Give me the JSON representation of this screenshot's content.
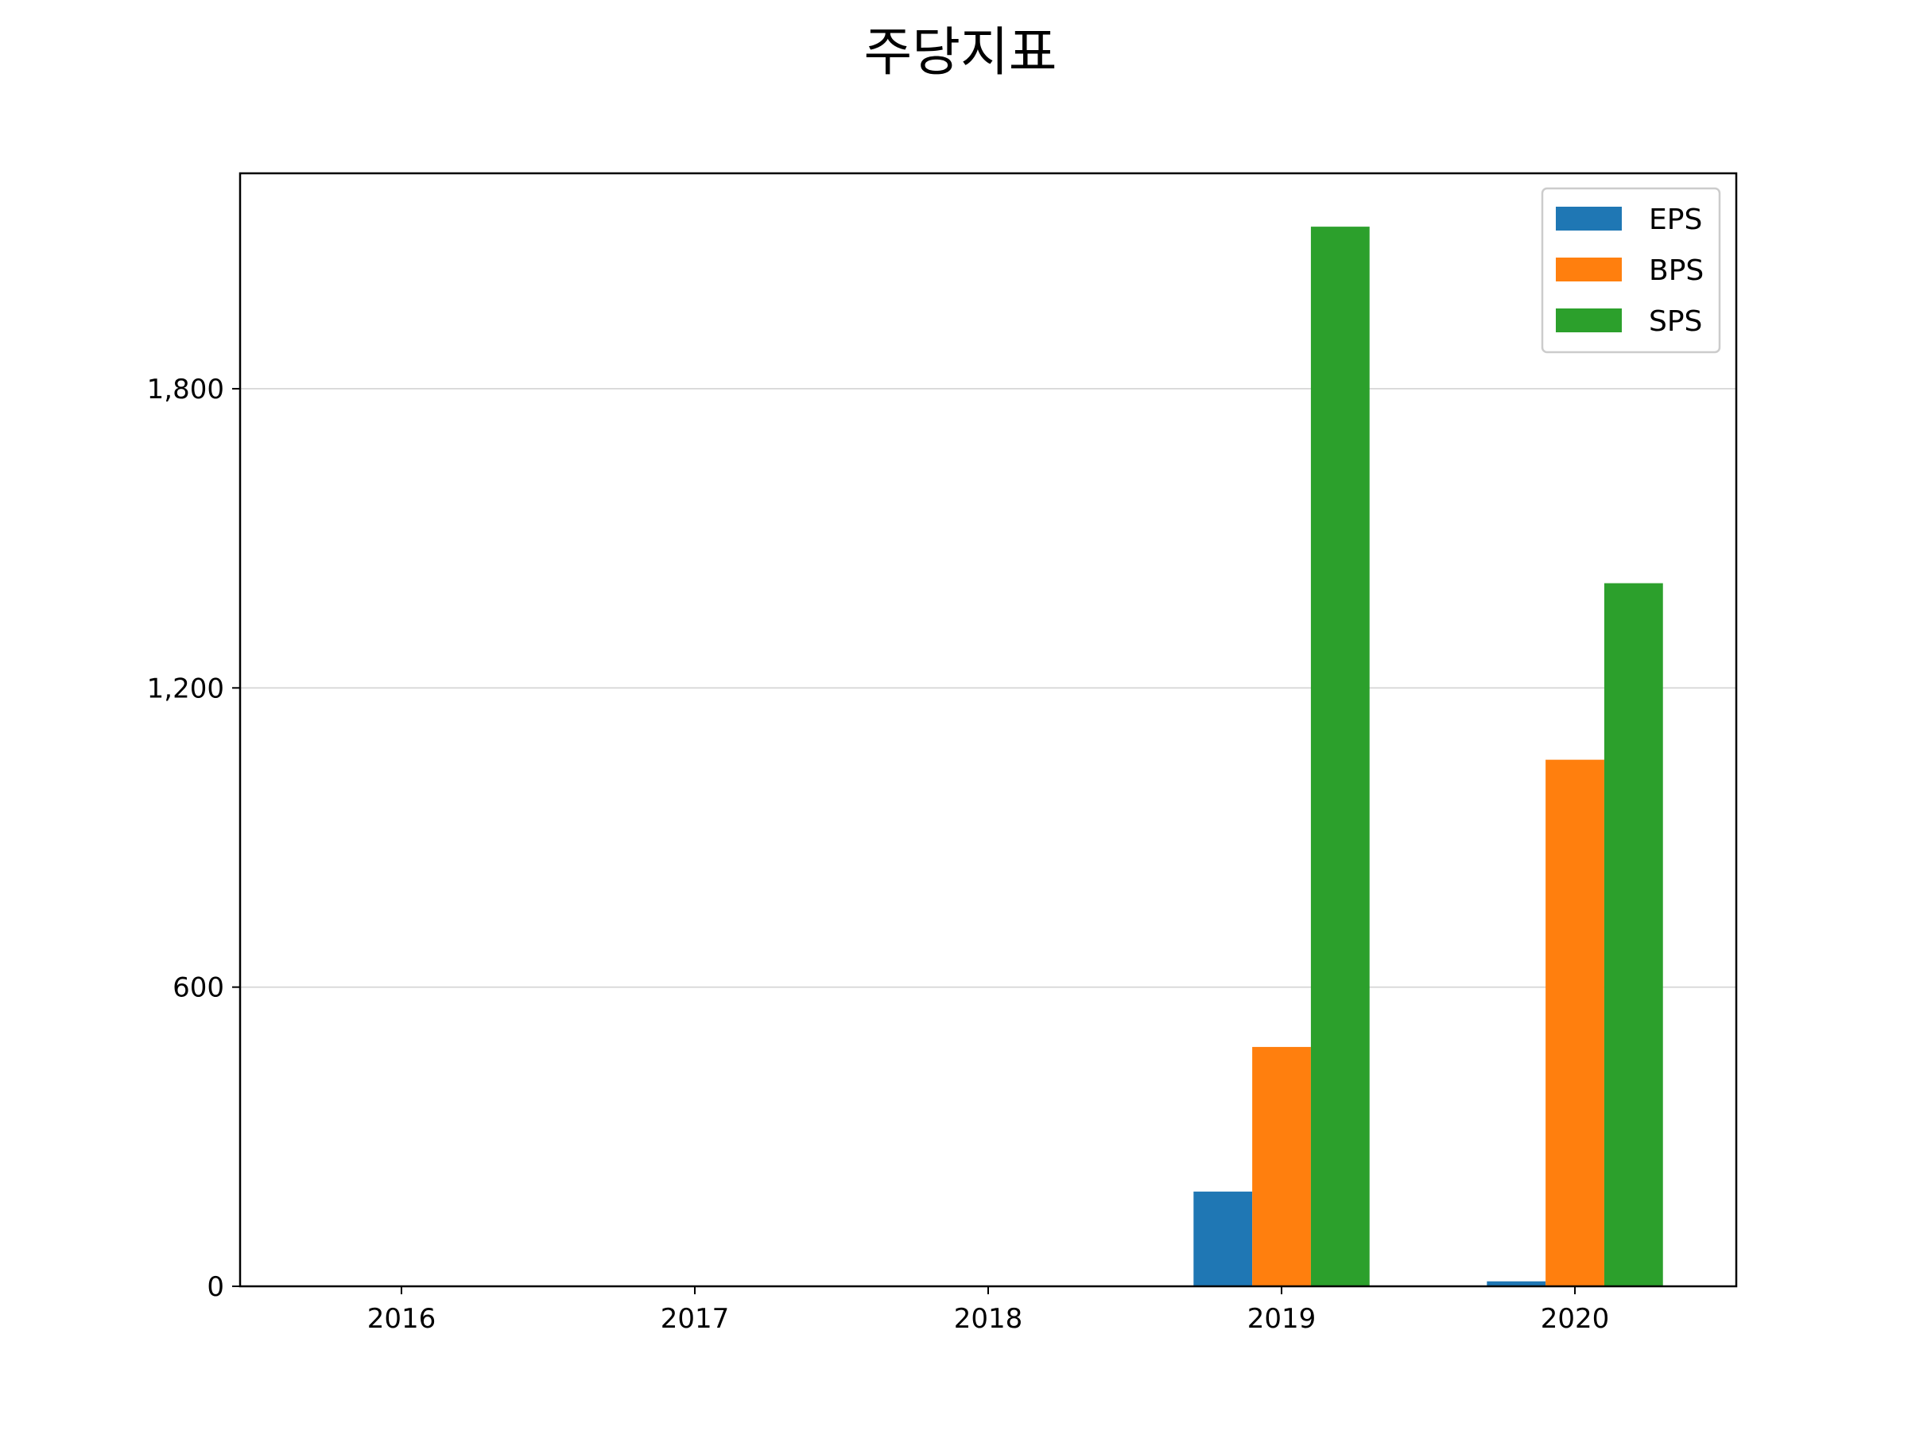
{
  "chart_data": {
    "type": "bar",
    "title": "주당지표",
    "xlabel": "",
    "ylabel": "",
    "categories": [
      "2016",
      "2017",
      "2018",
      "2019",
      "2020"
    ],
    "series": [
      {
        "name": "EPS",
        "color": "#1f77b4",
        "values": [
          0,
          0,
          0,
          190,
          10
        ]
      },
      {
        "name": "BPS",
        "color": "#ff7f0e",
        "values": [
          0,
          0,
          0,
          480,
          1056
        ]
      },
      {
        "name": "SPS",
        "color": "#2ca02c",
        "values": [
          0,
          0,
          0,
          2125,
          1410
        ]
      }
    ],
    "ylim": [
      0,
      2232
    ],
    "yticks": [
      0,
      600,
      1200,
      1800
    ],
    "ytick_labels": [
      "0",
      "600",
      "1,200",
      "1,800"
    ],
    "grid": "horizontal",
    "legend_position": "top-right"
  }
}
